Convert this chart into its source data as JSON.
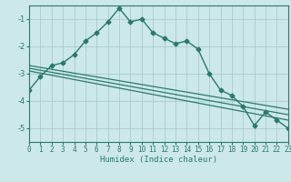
{
  "xlabel": "Humidex (Indice chaleur)",
  "bg_color": "#cce8e8",
  "line_color": "#2a7a6a",
  "grid_color": "#aacccc",
  "x_ticks": [
    0,
    1,
    2,
    3,
    4,
    5,
    6,
    7,
    8,
    9,
    10,
    11,
    12,
    13,
    14,
    15,
    16,
    17,
    18,
    19,
    20,
    21,
    22,
    23
  ],
  "y_ticks": [
    -5,
    -4,
    -3,
    -2,
    -1
  ],
  "ylim": [
    -5.5,
    -0.5
  ],
  "xlim": [
    0,
    23
  ],
  "main_line": {
    "x": [
      0,
      1,
      2,
      3,
      4,
      5,
      6,
      7,
      8,
      9,
      10,
      11,
      12,
      13,
      14,
      15,
      16,
      17,
      18,
      19,
      20,
      21,
      22,
      23
    ],
    "y": [
      -3.6,
      -3.1,
      -2.7,
      -2.6,
      -2.3,
      -1.8,
      -1.5,
      -1.1,
      -0.6,
      -1.1,
      -1.0,
      -1.5,
      -1.7,
      -1.9,
      -1.8,
      -2.1,
      -3.0,
      -3.6,
      -3.8,
      -4.2,
      -4.9,
      -4.4,
      -4.7,
      -5.0
    ]
  },
  "linear_lines": [
    {
      "x": [
        0,
        23
      ],
      "y": [
        -2.7,
        -4.3
      ]
    },
    {
      "x": [
        0,
        23
      ],
      "y": [
        -2.8,
        -4.5
      ]
    },
    {
      "x": [
        0,
        23
      ],
      "y": [
        -2.9,
        -4.7
      ]
    }
  ],
  "tick_fontsize": 5.5,
  "xlabel_fontsize": 6.5
}
